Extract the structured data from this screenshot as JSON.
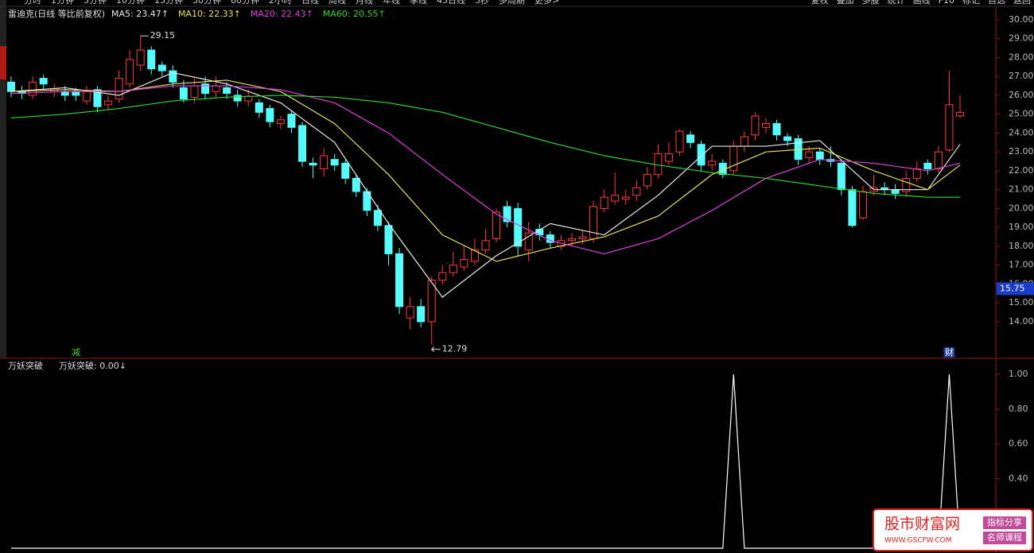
{
  "toolbar": {
    "left": [
      "分时",
      "1分钟",
      "5分钟",
      "10分钟",
      "15分钟",
      "30分钟",
      "60分钟",
      "2小时",
      "日线",
      "周线",
      "月线",
      "年线",
      "季线",
      "45日线",
      "5秒",
      "多周期",
      "更多>"
    ],
    "right": [
      "复权",
      "叠加",
      "多股",
      "统计",
      "画线",
      "F10",
      "标记",
      "自选",
      "返回"
    ]
  },
  "chart_data": [
    {
      "type": "candlestick",
      "title": "雷迪克(日线 等比前复权)",
      "open": [
        26.7,
        26.2,
        26.0,
        26.9,
        26.2,
        26.2,
        26.2,
        25.7,
        26.3,
        25.5,
        25.8,
        26.6,
        27.6,
        28.4,
        27.6,
        27.3,
        26.4,
        25.9,
        26.6,
        26.2,
        26.4,
        26.0,
        25.7,
        25.6,
        25.3,
        24.5,
        25.0,
        24.4,
        22.4,
        22.1,
        22.6,
        22.4,
        21.6,
        20.9,
        19.9,
        19.1,
        17.6,
        14.2,
        14.8,
        14.0,
        16.2,
        16.6,
        16.9,
        17.2,
        17.8,
        18.4,
        20.1,
        20.0,
        17.8,
        18.9,
        18.6,
        18.0,
        18.3,
        18.4,
        18.4,
        20.0,
        20.4,
        20.5,
        20.7,
        21.2,
        21.8,
        22.5,
        23.0,
        23.9,
        23.4,
        22.3,
        22.4,
        22.0,
        23.3,
        23.9,
        24.3,
        24.5,
        23.8,
        23.7,
        22.7,
        23.0,
        22.6,
        22.4,
        21.0,
        19.5,
        20.9,
        21.1,
        21.0,
        20.9,
        21.6,
        22.4,
        22.1,
        23.1,
        24.9
      ],
      "high": [
        27.0,
        26.5,
        27.0,
        27.1,
        26.6,
        26.5,
        26.4,
        26.5,
        26.5,
        26.0,
        27.3,
        28.4,
        29.15,
        28.6,
        27.8,
        27.6,
        26.8,
        26.9,
        27.0,
        27.0,
        26.7,
        26.3,
        26.3,
        25.8,
        25.5,
        24.9,
        25.2,
        24.6,
        22.7,
        23.2,
        22.9,
        22.6,
        21.8,
        21.1,
        20.2,
        19.3,
        17.9,
        15.3,
        15.2,
        16.4,
        17.0,
        17.7,
        18.0,
        18.4,
        18.9,
        20.0,
        20.4,
        20.3,
        19.3,
        19.2,
        18.8,
        18.6,
        18.7,
        18.8,
        20.4,
        21.0,
        21.9,
        21.0,
        21.5,
        22.2,
        23.4,
        23.5,
        24.2,
        24.1,
        23.6,
        22.9,
        22.6,
        23.6,
        24.1,
        25.1,
        24.8,
        24.7,
        24.0,
        23.9,
        23.3,
        23.2,
        23.3,
        22.6,
        21.2,
        21.2,
        21.8,
        21.4,
        21.3,
        22.0,
        22.5,
        22.6,
        23.3,
        27.3,
        26.0
      ],
      "low": [
        25.9,
        25.8,
        25.8,
        26.3,
        25.9,
        25.7,
        25.7,
        25.5,
        25.1,
        25.2,
        25.6,
        26.4,
        27.3,
        27.1,
        27.0,
        26.4,
        25.6,
        25.6,
        25.8,
        25.9,
        25.8,
        25.4,
        25.4,
        24.8,
        24.3,
        24.2,
        24.0,
        22.2,
        21.6,
        21.7,
        22.0,
        21.3,
        20.6,
        19.6,
        18.8,
        17.0,
        14.4,
        13.6,
        13.7,
        12.79,
        16.0,
        16.4,
        16.7,
        17.0,
        17.6,
        18.2,
        19.0,
        17.5,
        17.2,
        18.3,
        17.9,
        17.8,
        18.0,
        18.1,
        18.2,
        19.8,
        20.2,
        20.2,
        20.4,
        21.0,
        21.6,
        22.3,
        22.8,
        23.2,
        22.0,
        22.0,
        21.6,
        21.8,
        23.0,
        23.6,
        24.0,
        23.6,
        23.3,
        22.3,
        22.4,
        22.3,
        22.2,
        20.7,
        19.0,
        19.4,
        20.7,
        20.7,
        20.5,
        20.6,
        21.4,
        21.8,
        21.9,
        23.0,
        24.8
      ],
      "close": [
        26.2,
        26.1,
        26.7,
        26.6,
        26.35,
        26.0,
        26.0,
        26.2,
        25.4,
        25.7,
        26.9,
        27.9,
        28.4,
        27.4,
        27.3,
        26.7,
        25.8,
        26.5,
        26.1,
        26.5,
        26.1,
        25.7,
        25.95,
        25.1,
        24.6,
        24.7,
        24.3,
        22.5,
        22.3,
        22.8,
        22.3,
        21.6,
        20.9,
        19.9,
        19.1,
        17.6,
        14.8,
        14.8,
        14.0,
        16.2,
        16.6,
        17.0,
        17.3,
        17.8,
        18.3,
        19.8,
        19.3,
        18.0,
        18.7,
        18.6,
        18.2,
        18.3,
        18.4,
        18.5,
        20.1,
        20.6,
        20.7,
        20.6,
        21.1,
        21.8,
        22.9,
        22.9,
        24.1,
        23.5,
        22.3,
        22.5,
        21.8,
        23.3,
        23.8,
        24.9,
        24.5,
        23.9,
        23.6,
        22.6,
        23.0,
        22.6,
        22.5,
        21.0,
        19.1,
        20.9,
        21.1,
        21.0,
        20.8,
        21.6,
        22.1,
        22.1,
        23.0,
        25.5,
        25.1
      ],
      "up_color": "#ff3c3c",
      "down_color": "#54fcfc",
      "lines": [
        {
          "name": "MA5: 23.47↑",
          "color": "#e8e8e8",
          "x": [
            0,
            5,
            10,
            15,
            20,
            25,
            30,
            35,
            40,
            45,
            50,
            55,
            60,
            65,
            70,
            75,
            80,
            85,
            88
          ],
          "values": [
            26.2,
            26.4,
            26.0,
            27.2,
            26.6,
            25.6,
            23.5,
            19.2,
            15.3,
            17.5,
            19.2,
            18.6,
            20.7,
            23.3,
            23.3,
            23.6,
            21.0,
            21.0,
            23.4
          ]
        },
        {
          "name": "MA10: 22.33↑",
          "color": "#e6e05a",
          "x": [
            0,
            5,
            10,
            15,
            20,
            25,
            30,
            35,
            40,
            45,
            50,
            55,
            60,
            65,
            70,
            75,
            80,
            85,
            88
          ],
          "values": [
            26.2,
            26.3,
            26.2,
            26.6,
            26.8,
            26.2,
            24.5,
            21.8,
            18.6,
            17.2,
            17.9,
            18.5,
            19.6,
            21.8,
            23.0,
            23.2,
            22.0,
            21.0,
            22.3
          ]
        },
        {
          "name": "MA20: 22.43↑",
          "color": "#e040e0",
          "x": [
            0,
            5,
            10,
            15,
            20,
            25,
            30,
            35,
            40,
            45,
            50,
            55,
            60,
            65,
            70,
            75,
            80,
            85,
            88
          ],
          "values": [
            26.1,
            26.2,
            26.2,
            26.5,
            26.5,
            26.3,
            25.6,
            24.0,
            21.8,
            19.7,
            18.3,
            17.6,
            18.4,
            19.9,
            21.6,
            22.6,
            22.4,
            22.0,
            22.4
          ]
        },
        {
          "name": "MA60: 20.55↑",
          "color": "#2ed62e",
          "x": [
            0,
            5,
            10,
            15,
            20,
            25,
            30,
            35,
            40,
            45,
            50,
            55,
            60,
            65,
            70,
            75,
            80,
            85,
            88
          ],
          "values": [
            24.8,
            25.0,
            25.3,
            25.7,
            25.9,
            26.0,
            25.9,
            25.6,
            25.1,
            24.3,
            23.5,
            22.8,
            22.3,
            21.9,
            21.6,
            21.2,
            20.8,
            20.6,
            20.6
          ]
        }
      ],
      "ylim": [
        12.1,
        30.42
      ],
      "yticks": [
        {
          "value": 14,
          "label": "14.00"
        },
        {
          "value": 15,
          "label": "15.00"
        },
        {
          "value": 16,
          "label": "16.00"
        },
        {
          "value": 17,
          "label": "17.00"
        },
        {
          "value": 18,
          "label": "18.00"
        },
        {
          "value": 19,
          "label": "19.00"
        },
        {
          "value": 20,
          "label": "20.00"
        },
        {
          "value": 21,
          "label": "21.00"
        },
        {
          "value": 22,
          "label": "22.00"
        },
        {
          "value": 23,
          "label": "23.00"
        },
        {
          "value": 24,
          "label": "24.00"
        },
        {
          "value": 25,
          "label": "25.00"
        },
        {
          "value": 26,
          "label": "26.00"
        },
        {
          "value": 27,
          "label": "27.00"
        },
        {
          "value": 28,
          "label": "28.00"
        },
        {
          "value": 29,
          "label": "29.00"
        },
        {
          "value": 30,
          "label": "30.00"
        }
      ],
      "price_marker": 15.75,
      "events": [
        {
          "x": 6,
          "label": "减"
        },
        {
          "x": 87,
          "label": "财"
        }
      ]
    },
    {
      "type": "line",
      "title": "万妖突破",
      "legend": "万妖突破: 0.00↓",
      "series": [
        {
          "name": "万妖突破",
          "color": "#ffffff",
          "x": [
            0,
            66,
            67,
            68,
            86,
            87,
            88
          ],
          "values": [
            0,
            0,
            1,
            0,
            0,
            1,
            0
          ]
        }
      ],
      "ylim": [
        0,
        1.06
      ],
      "yticks": [
        {
          "value": 0.4,
          "label": "0.40"
        },
        {
          "value": 0.6,
          "label": "0.60"
        },
        {
          "value": 0.8,
          "label": "0.80"
        },
        {
          "value": 1,
          "label": "1.00"
        }
      ]
    }
  ],
  "watermark": {
    "name": "股市财富网",
    "url": "WWW.GSCFW.COM",
    "tags": [
      "指标分享",
      "名师课程"
    ]
  }
}
